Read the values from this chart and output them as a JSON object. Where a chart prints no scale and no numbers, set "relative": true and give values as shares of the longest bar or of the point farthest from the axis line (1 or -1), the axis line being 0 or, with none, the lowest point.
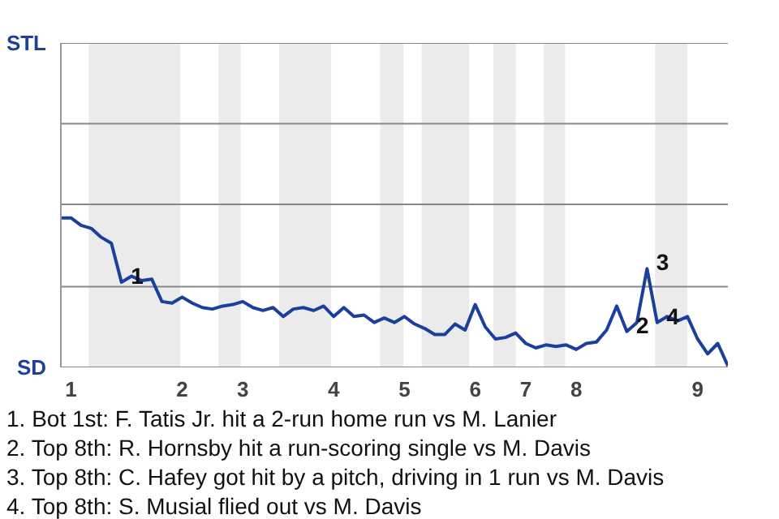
{
  "chart_data": {
    "type": "line",
    "relative": true,
    "categories": [
      null,
      "1",
      null,
      null,
      null,
      null,
      null,
      null,
      null,
      null,
      null,
      null,
      "2",
      null,
      null,
      null,
      null,
      null,
      "3",
      null,
      null,
      null,
      null,
      null,
      null,
      null,
      null,
      "4",
      null,
      null,
      null,
      null,
      null,
      null,
      "5",
      null,
      null,
      null,
      null,
      null,
      null,
      "6",
      null,
      null,
      null,
      null,
      "7",
      null,
      null,
      null,
      null,
      "8",
      null,
      null,
      null,
      null,
      null,
      null,
      null,
      null,
      null,
      null,
      null,
      "9",
      null,
      null,
      null
    ],
    "ref_lines": [
      {
        "axis": "y",
        "value": 0.54,
        "color": "#888888"
      },
      {
        "axis": "y",
        "value": 1.09,
        "color": "#888888"
      },
      {
        "axis": "y",
        "value": 1.63,
        "color": "#888888"
      },
      {
        "axis": "y",
        "value": 2.17,
        "color": "#888888"
      }
    ],
    "series": [
      {
        "color": "#1a3f9e",
        "values": [
          1,
          1,
          0.95,
          0.93,
          0.87,
          0.83,
          0.57,
          0.61,
          0.58,
          0.59,
          0.44,
          0.43,
          0.47,
          0.43,
          0.4,
          0.39,
          0.41,
          0.42,
          0.44,
          0.4,
          0.38,
          0.4,
          0.34,
          0.39,
          0.4,
          0.38,
          0.41,
          0.34,
          0.4,
          0.34,
          0.35,
          0.3,
          0.33,
          0.3,
          0.34,
          0.29,
          0.26,
          0.22,
          0.22,
          0.29,
          0.25,
          0.42,
          0.27,
          0.19,
          0.2,
          0.23,
          0.16,
          0.13,
          0.15,
          0.14,
          0.15,
          0.12,
          0.16,
          0.17,
          0.25,
          0.41,
          0.24,
          0.3,
          0.66,
          0.3,
          0.34,
          0.31,
          0.34,
          0.19,
          0.09,
          0.16,
          0.01
        ]
      }
    ],
    "annotations": [
      "STL",
      "SD",
      "1",
      "2",
      "3",
      "4",
      "1. Bot 1st: F. Tatis Jr. hit a 2-run home run vs M. Lanier",
      "2. Top 8th: R. Hornsby hit a run-scoring single vs M. Davis",
      "3. Top 8th: C. Hafey got hit by a pitch, driving in 1 run vs M. Davis",
      "4. Top 8th: S. Musial flied out vs M. Davis"
    ]
  }
}
